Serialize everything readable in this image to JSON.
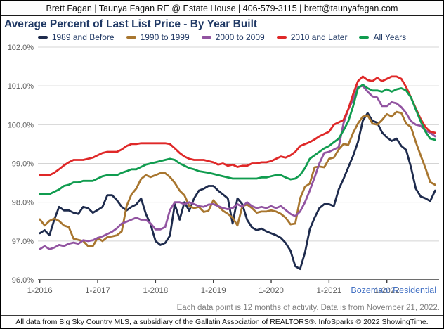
{
  "header": {
    "contact": "Brett Fagan | Taunya Fagan RE @ Estate House | 406-579-3115 | brett@taunyafagan.com"
  },
  "title": "Average Percent of Last List Price - By Year Built",
  "footer": {
    "market_label": "Bozeman: Residential",
    "note": "Each data point is 12 months of activity. Data is from November 21, 2022.",
    "attribution": "All data from Big Sky Country MLS, a subsidiary of the Gallatin Association of REALTORS®. InfoSparks © 2022 ShowingTime."
  },
  "chart_data": {
    "type": "line",
    "title": "Average Percent of Last List Price - By Year Built",
    "grid": "horizontal",
    "legend_position": "top",
    "ylim": [
      96.0,
      102.3
    ],
    "y_tick_labels": [
      "102.0%",
      "101.0%",
      "100.0%",
      "99.0%",
      "98.0%",
      "97.0%",
      "96.0%"
    ],
    "y_tick_values": [
      102,
      101,
      100,
      99,
      98,
      97,
      96
    ],
    "x_tick_labels": [
      "1-2016",
      "1-2017",
      "1-2018",
      "1-2019",
      "1-2020",
      "1-2021",
      "1-2022"
    ],
    "x_frequency": "monthly",
    "x_start": "1-2016",
    "x_end": "11-2022",
    "series": [
      {
        "name": "1989 and Before",
        "color": "#1e2b4d",
        "values": [
          97.2,
          97.28,
          97.15,
          97.55,
          97.88,
          97.79,
          97.79,
          97.73,
          97.7,
          97.88,
          97.85,
          97.73,
          97.8,
          97.88,
          98.18,
          98.18,
          98.05,
          97.88,
          97.79,
          97.88,
          97.94,
          98.1,
          97.7,
          97.42,
          97.0,
          96.9,
          96.95,
          97.14,
          97.95,
          97.55,
          98.0,
          97.78,
          98.1,
          98.3,
          98.35,
          98.42,
          98.42,
          98.3,
          98.2,
          98.1,
          97.45,
          98.1,
          97.95,
          97.55,
          97.35,
          97.28,
          97.32,
          97.25,
          97.2,
          97.15,
          97.08,
          96.95,
          96.75,
          96.35,
          96.28,
          96.7,
          97.3,
          97.6,
          97.85,
          97.95,
          97.95,
          97.9,
          98.33,
          98.6,
          98.9,
          99.2,
          99.55,
          100.1,
          100.3,
          100.1,
          100.05,
          99.8,
          99.67,
          99.58,
          99.64,
          99.45,
          99.35,
          98.9,
          98.35,
          98.15,
          98.1,
          98.03,
          98.3
        ]
      },
      {
        "name": "1990 to 1999",
        "color": "#a8762f",
        "values": [
          97.56,
          97.4,
          97.52,
          97.58,
          97.52,
          97.4,
          97.36,
          97.06,
          97.03,
          97.0,
          96.87,
          96.87,
          97.08,
          97.0,
          97.1,
          97.12,
          97.15,
          97.25,
          97.9,
          98.2,
          98.35,
          98.6,
          98.7,
          98.65,
          98.7,
          98.75,
          98.75,
          98.65,
          98.5,
          98.3,
          98.18,
          97.9,
          97.85,
          97.88,
          97.75,
          97.78,
          98.05,
          97.9,
          97.78,
          97.7,
          97.6,
          97.4,
          97.9,
          97.94,
          97.85,
          97.73,
          97.76,
          97.76,
          97.79,
          97.76,
          97.7,
          97.6,
          97.43,
          97.45,
          98.1,
          98.4,
          98.48,
          98.9,
          98.92,
          98.9,
          99.12,
          99.15,
          99.36,
          99.5,
          99.48,
          99.79,
          100.03,
          100.21,
          100.24,
          100.03,
          100.0,
          100.12,
          100.27,
          100.21,
          100.33,
          100.3,
          100.03,
          99.94,
          99.55,
          99.21,
          98.88,
          98.52,
          98.45
        ]
      },
      {
        "name": "2000 to 2009",
        "color": "#9254a1",
        "values": [
          96.79,
          96.87,
          96.79,
          96.83,
          96.9,
          96.87,
          96.93,
          96.96,
          96.93,
          97.02,
          97.0,
          97.02,
          97.08,
          97.12,
          97.18,
          97.24,
          97.33,
          97.45,
          97.5,
          97.55,
          97.6,
          97.55,
          97.55,
          97.45,
          97.3,
          97.3,
          97.36,
          97.8,
          98.0,
          98.0,
          97.95,
          98.0,
          97.95,
          97.9,
          97.88,
          97.94,
          97.95,
          97.9,
          97.85,
          97.82,
          97.85,
          97.95,
          97.88,
          98.0,
          97.9,
          97.85,
          97.88,
          97.85,
          97.9,
          97.85,
          97.9,
          97.8,
          97.7,
          97.64,
          97.76,
          98.0,
          98.3,
          98.64,
          99.0,
          99.27,
          99.3,
          99.36,
          99.42,
          100.03,
          100.4,
          100.64,
          100.97,
          101.0,
          100.85,
          100.73,
          100.7,
          100.48,
          100.48,
          100.58,
          100.55,
          100.45,
          100.3,
          100.09,
          100.0,
          99.97,
          99.85,
          99.79,
          99.7
        ]
      },
      {
        "name": "2010 and Later",
        "color": "#df2828",
        "values": [
          98.7,
          98.7,
          98.7,
          98.76,
          98.85,
          98.95,
          99.03,
          99.09,
          99.09,
          99.09,
          99.12,
          99.15,
          99.21,
          99.27,
          99.3,
          99.3,
          99.3,
          99.36,
          99.45,
          99.5,
          99.5,
          99.52,
          99.52,
          99.52,
          99.52,
          99.52,
          99.52,
          99.5,
          99.39,
          99.27,
          99.18,
          99.12,
          99.09,
          99.09,
          99.09,
          99.06,
          99.03,
          98.97,
          99.0,
          98.94,
          98.97,
          98.91,
          98.94,
          98.94,
          99.0,
          99.0,
          99.03,
          99.03,
          99.06,
          99.12,
          99.18,
          99.15,
          99.21,
          99.3,
          99.45,
          99.5,
          99.55,
          99.62,
          99.7,
          99.76,
          99.82,
          100.0,
          100.06,
          100.12,
          100.4,
          100.79,
          101.12,
          101.24,
          101.15,
          101.12,
          101.21,
          101.12,
          101.18,
          101.24,
          101.24,
          101.18,
          100.97,
          100.7,
          100.42,
          100.15,
          99.94,
          99.82,
          99.79
        ]
      },
      {
        "name": "All Years",
        "color": "#109c4f",
        "values": [
          98.21,
          98.21,
          98.21,
          98.27,
          98.33,
          98.42,
          98.45,
          98.51,
          98.51,
          98.55,
          98.55,
          98.55,
          98.61,
          98.67,
          98.7,
          98.7,
          98.7,
          98.76,
          98.8,
          98.85,
          98.85,
          98.91,
          98.97,
          99.0,
          99.03,
          99.06,
          99.09,
          99.12,
          99.09,
          99.0,
          98.94,
          98.88,
          98.85,
          98.8,
          98.78,
          98.76,
          98.73,
          98.7,
          98.67,
          98.64,
          98.61,
          98.61,
          98.61,
          98.61,
          98.61,
          98.61,
          98.64,
          98.64,
          98.67,
          98.7,
          98.7,
          98.64,
          98.59,
          98.61,
          98.7,
          98.88,
          99.12,
          99.21,
          99.3,
          99.39,
          99.45,
          99.55,
          99.64,
          99.85,
          100.09,
          100.48,
          100.94,
          101.03,
          100.94,
          100.88,
          100.88,
          100.85,
          100.91,
          100.85,
          100.91,
          100.94,
          100.88,
          100.7,
          100.39,
          100.09,
          99.82,
          99.64,
          99.61
        ]
      }
    ]
  }
}
